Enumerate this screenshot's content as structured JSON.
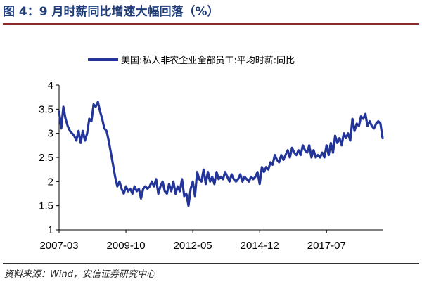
{
  "header": {
    "title": "图 4：9 月时薪同比增速大幅回落（%）"
  },
  "footer": {
    "source": "资料来源：Wind，安信证券研究中心"
  },
  "colors": {
    "series": "#24359a",
    "axis": "#000000"
  },
  "chart_data": {
    "type": "line",
    "title": "",
    "xlabel": "",
    "ylabel": "",
    "ylim": [
      1,
      4
    ],
    "yticks": [
      1,
      1.5,
      2,
      2.5,
      3,
      3.5,
      4
    ],
    "ytick_labels": [
      "1",
      "1.5",
      "2",
      "2.5",
      "3",
      "3.5",
      "4"
    ],
    "xlim": [
      "2007-03",
      "2019-09"
    ],
    "xticks": [
      "2007-03",
      "2009-10",
      "2012-05",
      "2014-12",
      "2017-07"
    ],
    "grid": false,
    "legend": "top",
    "series": [
      {
        "name": "美国:私人非农企业全部员工:平均时薪:同比",
        "x": [
          "2007-03",
          "2007-04",
          "2007-05",
          "2007-06",
          "2007-07",
          "2007-08",
          "2007-09",
          "2007-10",
          "2007-11",
          "2007-12",
          "2008-01",
          "2008-02",
          "2008-03",
          "2008-04",
          "2008-05",
          "2008-06",
          "2008-07",
          "2008-08",
          "2008-09",
          "2008-10",
          "2008-11",
          "2008-12",
          "2009-01",
          "2009-02",
          "2009-03",
          "2009-04",
          "2009-05",
          "2009-06",
          "2009-07",
          "2009-08",
          "2009-09",
          "2009-10",
          "2009-11",
          "2009-12",
          "2010-01",
          "2010-02",
          "2010-03",
          "2010-04",
          "2010-05",
          "2010-06",
          "2010-07",
          "2010-08",
          "2010-09",
          "2010-10",
          "2010-11",
          "2010-12",
          "2011-01",
          "2011-02",
          "2011-03",
          "2011-04",
          "2011-05",
          "2011-06",
          "2011-07",
          "2011-08",
          "2011-09",
          "2011-10",
          "2011-11",
          "2011-12",
          "2012-01",
          "2012-02",
          "2012-03",
          "2012-04",
          "2012-05",
          "2012-06",
          "2012-07",
          "2012-08",
          "2012-09",
          "2012-10",
          "2012-11",
          "2012-12",
          "2013-01",
          "2013-02",
          "2013-03",
          "2013-04",
          "2013-05",
          "2013-06",
          "2013-07",
          "2013-08",
          "2013-09",
          "2013-10",
          "2013-11",
          "2013-12",
          "2014-01",
          "2014-02",
          "2014-03",
          "2014-04",
          "2014-05",
          "2014-06",
          "2014-07",
          "2014-08",
          "2014-09",
          "2014-10",
          "2014-11",
          "2014-12",
          "2015-01",
          "2015-02",
          "2015-03",
          "2015-04",
          "2015-05",
          "2015-06",
          "2015-07",
          "2015-08",
          "2015-09",
          "2015-10",
          "2015-11",
          "2015-12",
          "2016-01",
          "2016-02",
          "2016-03",
          "2016-04",
          "2016-05",
          "2016-06",
          "2016-07",
          "2016-08",
          "2016-09",
          "2016-10",
          "2016-11",
          "2016-12",
          "2017-01",
          "2017-02",
          "2017-03",
          "2017-04",
          "2017-05",
          "2017-06",
          "2017-07",
          "2017-08",
          "2017-09",
          "2017-10",
          "2017-11",
          "2017-12",
          "2018-01",
          "2018-02",
          "2018-03",
          "2018-04",
          "2018-05",
          "2018-06",
          "2018-07",
          "2018-08",
          "2018-09",
          "2018-10",
          "2018-11",
          "2018-12",
          "2019-01",
          "2019-02",
          "2019-03",
          "2019-04",
          "2019-05",
          "2019-06",
          "2019-07",
          "2019-08",
          "2019-09"
        ],
        "values": [
          3.45,
          3.1,
          3.55,
          3.3,
          3.15,
          3.05,
          3.0,
          2.95,
          2.85,
          3.05,
          2.8,
          3.05,
          2.85,
          3.0,
          3.3,
          3.25,
          3.6,
          3.55,
          3.65,
          3.45,
          3.3,
          3.1,
          3.05,
          2.85,
          2.6,
          2.35,
          2.1,
          1.9,
          2.0,
          1.85,
          1.75,
          1.9,
          1.8,
          1.85,
          1.75,
          1.9,
          1.8,
          1.85,
          1.65,
          1.85,
          1.9,
          1.85,
          1.9,
          2.0,
          1.9,
          2.05,
          1.75,
          1.9,
          2.0,
          1.8,
          1.75,
          1.95,
          1.8,
          2.0,
          1.75,
          1.9,
          1.8,
          2.05,
          1.7,
          1.75,
          1.5,
          1.85,
          2.0,
          1.7,
          2.2,
          2.05,
          2.0,
          2.25,
          1.95,
          2.2,
          2.0,
          2.1,
          1.95,
          2.2,
          2.05,
          2.1,
          2.05,
          2.2,
          2.1,
          2.0,
          2.15,
          2.05,
          2.0,
          2.05,
          2.15,
          2.0,
          2.1,
          2.05,
          2.0,
          2.1,
          2.05,
          2.1,
          2.2,
          1.95,
          2.3,
          2.2,
          2.3,
          2.25,
          2.4,
          2.35,
          2.55,
          2.45,
          2.4,
          2.55,
          2.45,
          2.55,
          2.65,
          2.5,
          2.7,
          2.6,
          2.55,
          2.65,
          2.55,
          2.75,
          2.65,
          2.6,
          2.75,
          2.5,
          2.65,
          2.5,
          2.55,
          2.5,
          2.6,
          2.5,
          2.75,
          2.55,
          2.8,
          2.6,
          2.95,
          2.8,
          2.9,
          2.75,
          3.0,
          2.9,
          3.0,
          2.85,
          3.3,
          3.05,
          3.2,
          3.15,
          3.35,
          3.3,
          3.4,
          3.15,
          3.25,
          3.15,
          3.1,
          3.2,
          3.25,
          3.2,
          2.9
        ]
      }
    ]
  }
}
